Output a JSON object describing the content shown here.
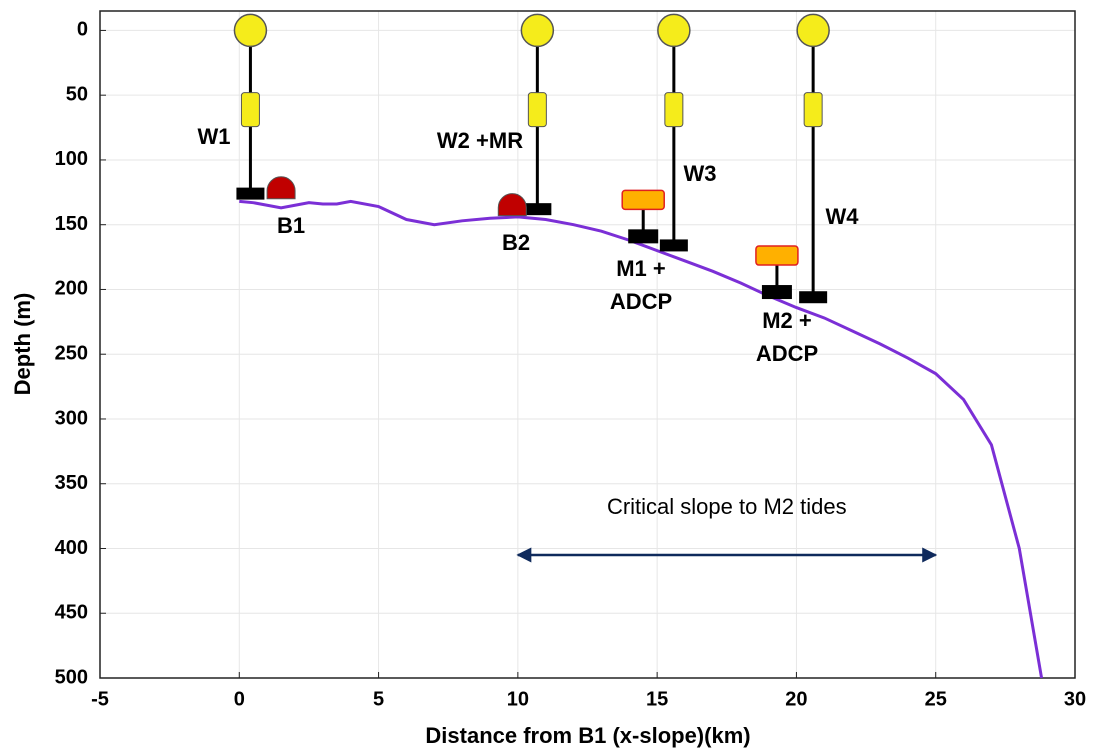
{
  "chart_data": {
    "type": "line",
    "x_label": "Distance from B1 (x-slope)(km)",
    "y_label": "Depth (m)",
    "xlim": [
      -5,
      30
    ],
    "ylim": [
      -15,
      500
    ],
    "y_reversed": true,
    "xticks": [
      -5,
      0,
      5,
      10,
      15,
      20,
      25,
      30
    ],
    "yticks": [
      0,
      50,
      100,
      150,
      200,
      250,
      300,
      350,
      400,
      450,
      500
    ],
    "grid": true,
    "color": "#7b2fd6",
    "x": [
      0,
      0.5,
      1,
      1.5,
      2,
      2.5,
      3,
      3.5,
      4,
      5,
      6,
      7,
      8,
      9,
      10,
      11,
      12,
      13,
      14,
      15,
      16,
      17,
      18,
      19,
      20,
      21,
      22,
      23,
      24,
      25,
      26,
      27,
      28,
      28.8
    ],
    "values": [
      132,
      133,
      135,
      137,
      135,
      133,
      134,
      134,
      132,
      136,
      146,
      150,
      147,
      145,
      144,
      146,
      150,
      155,
      162,
      170,
      178,
      186,
      195,
      205,
      214,
      222,
      232,
      242,
      253,
      265,
      285,
      320,
      400,
      500
    ],
    "moorings": [
      {
        "label": "W1",
        "x": 0.4,
        "depth": 126
      },
      {
        "label": "W2 +MR",
        "x": 10.7,
        "depth": 138
      },
      {
        "label": "W3",
        "x": 15.6,
        "depth": 166
      },
      {
        "label": "W4",
        "x": 20.6,
        "depth": 206
      }
    ],
    "landers": [
      {
        "label": "B1",
        "x": 1.5,
        "depth": 130
      },
      {
        "label": "B2",
        "x": 9.8,
        "depth": 143
      }
    ],
    "adcps": [
      {
        "label": [
          "M1 +",
          "ADCP"
        ],
        "x": 14.5,
        "depth": 159
      },
      {
        "label": [
          "M2 +",
          "ADCP"
        ],
        "x": 19.3,
        "depth": 202
      }
    ],
    "arrow": {
      "label": "Critical slope to M2 tides",
      "x": [
        10,
        25
      ],
      "depth": 405
    }
  }
}
